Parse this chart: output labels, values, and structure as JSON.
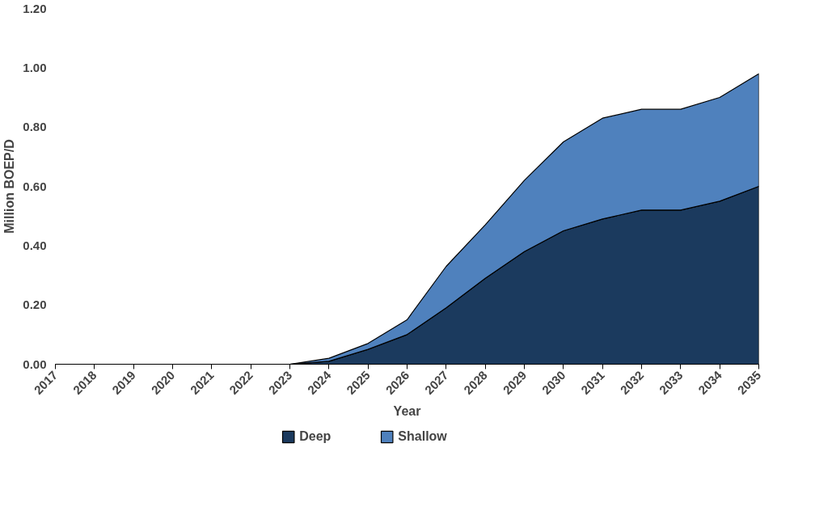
{
  "chart_data": {
    "type": "area",
    "stacked": true,
    "xlabel": "Year",
    "ylabel": "Million BOEP/D",
    "categories": [
      "2017",
      "2018",
      "2019",
      "2020",
      "2021",
      "2022",
      "2023",
      "2024",
      "2025",
      "2026",
      "2027",
      "2028",
      "2029",
      "2030",
      "2031",
      "2032",
      "2033",
      "2034",
      "2035"
    ],
    "series": [
      {
        "name": "Deep",
        "color": "#1b3a5e",
        "values": [
          0,
          0,
          0,
          0,
          0,
          0,
          0,
          0.01,
          0.05,
          0.1,
          0.19,
          0.29,
          0.38,
          0.45,
          0.49,
          0.52,
          0.52,
          0.55,
          0.6
        ]
      },
      {
        "name": "Shallow",
        "color": "#4f81bd",
        "values": [
          0,
          0,
          0,
          0,
          0,
          0,
          0,
          0.01,
          0.02,
          0.05,
          0.14,
          0.18,
          0.24,
          0.3,
          0.34,
          0.34,
          0.34,
          0.35,
          0.38
        ]
      }
    ],
    "ylim": [
      0,
      1.2
    ],
    "yticks": [
      {
        "value": 0,
        "label": "0.00"
      },
      {
        "value": 0.2,
        "label": "0.20"
      },
      {
        "value": 0.4,
        "label": "0.40"
      },
      {
        "value": 0.6,
        "label": "0.60"
      },
      {
        "value": 0.8,
        "label": "0.80"
      },
      {
        "value": 1.0,
        "label": "1.00"
      },
      {
        "value": 1.2,
        "label": "1.20"
      }
    ],
    "grid": false,
    "legend": "bottom"
  }
}
